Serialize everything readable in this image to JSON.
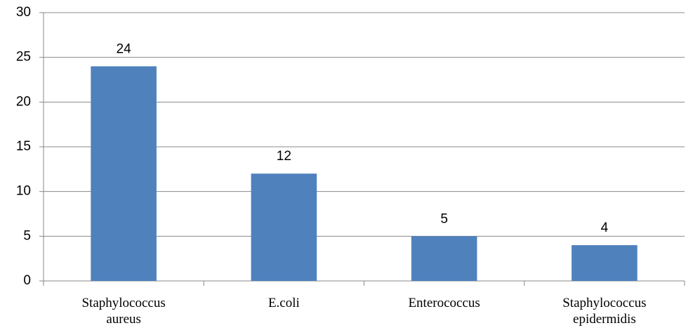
{
  "chart_data": {
    "type": "bar",
    "categories": [
      "Staphylococcus aureus",
      "E.coli",
      "Enterococcus",
      "Staphylococcus epidermidis"
    ],
    "values": [
      24,
      12,
      5,
      4
    ],
    "color": "#4f81bd",
    "ylim": [
      0,
      30
    ],
    "yticks": [
      0,
      5,
      10,
      15,
      20,
      25,
      30
    ],
    "grid": true
  }
}
